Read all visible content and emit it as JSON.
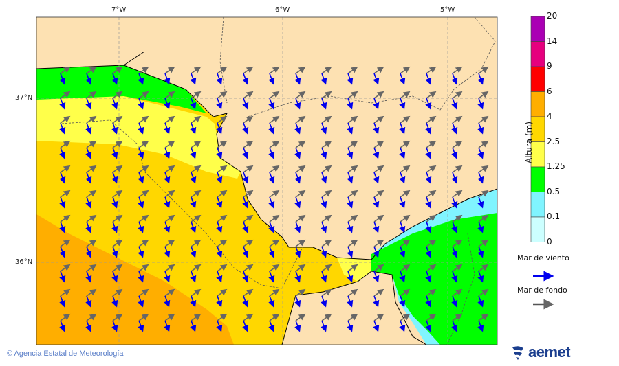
{
  "map": {
    "lon_labels": [
      "7°W",
      "6°W",
      "5°W"
    ],
    "lat_labels": [
      "37°N",
      "36°N"
    ],
    "colors": {
      "land": "#fde1b2",
      "green": "#00ff00",
      "yellow": "#ffff4a",
      "gold": "#ffd700",
      "orange": "#ffae00",
      "cyan": "#80f4ff",
      "wind_arrow": "#0000ee",
      "swell_arrow": "#666666"
    }
  },
  "colorbar": {
    "title": "Altura (m)",
    "ticks": [
      "20",
      "14",
      "9",
      "6",
      "4",
      "2.5",
      "1.25",
      "0.5",
      "0.1",
      "0"
    ],
    "colors": [
      "#aa00b4",
      "#e6007e",
      "#ff0000",
      "#ffae00",
      "#ffd700",
      "#ffff4a",
      "#00ff00",
      "#80f4ff",
      "#ccffff"
    ]
  },
  "legend": {
    "wind_sea": "Mar de viento",
    "swell": "Mar de fondo"
  },
  "footer": {
    "copyright": "© Agencia Estatal de Meteorología",
    "logo": "aemet"
  }
}
